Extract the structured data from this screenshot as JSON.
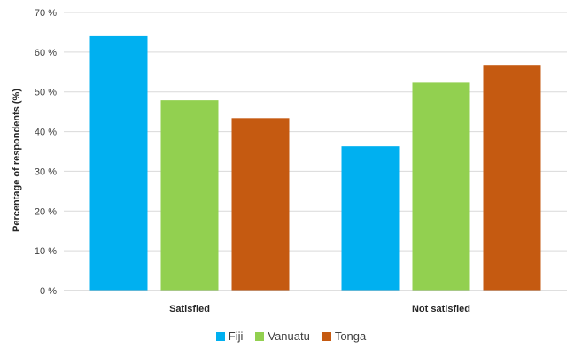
{
  "chart_data": {
    "type": "bar",
    "categories": [
      "Satisfied",
      "Not satisfied"
    ],
    "series": [
      {
        "name": "Fiji",
        "color": "#00b0f0",
        "values": [
          64,
          36.3
        ]
      },
      {
        "name": "Vanuatu",
        "color": "#92d050",
        "values": [
          47.9,
          52.3
        ]
      },
      {
        "name": "Tonga",
        "color": "#c55a11",
        "values": [
          43.4,
          56.8
        ]
      }
    ],
    "title": "",
    "xlabel": "",
    "ylabel": "Percentage of respondents (%)",
    "ylim": [
      0,
      70
    ],
    "yticks": [
      "0 %",
      "10 %",
      "20 %",
      "30 %",
      "40 %",
      "50 %",
      "60 %",
      "70 %"
    ],
    "grid": true,
    "legend_position": "bottom"
  }
}
